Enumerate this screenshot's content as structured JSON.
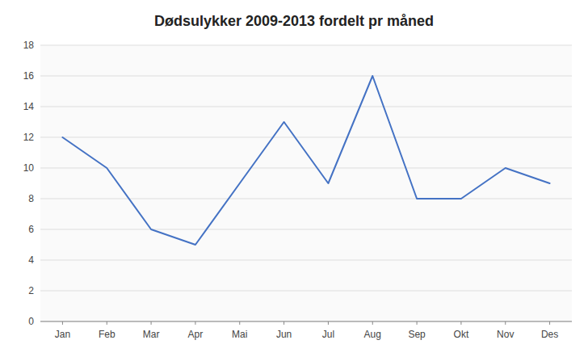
{
  "chart_data": {
    "type": "line",
    "title": "Dødsulykker 2009-2013 fordelt pr måned",
    "categories": [
      "Jan",
      "Feb",
      "Mar",
      "Apr",
      "Mai",
      "Jun",
      "Jul",
      "Aug",
      "Sep",
      "Okt",
      "Nov",
      "Des"
    ],
    "values": [
      12,
      10,
      6,
      5,
      9,
      13,
      9,
      16,
      8,
      8,
      10,
      9
    ],
    "color": "#4472C4",
    "ylim": [
      0,
      18
    ],
    "yticks": [
      0,
      2,
      4,
      6,
      8,
      10,
      12,
      14,
      16,
      18
    ],
    "grid": true
  }
}
